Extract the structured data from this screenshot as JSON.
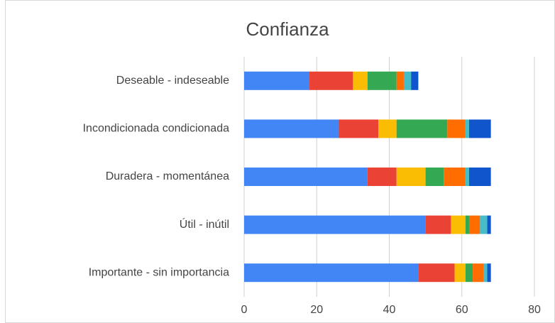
{
  "chart_data": {
    "type": "bar",
    "orientation": "horizontal",
    "stacked": true,
    "title": "Confianza",
    "categories": [
      "Deseable - indeseable",
      "Incondicionada condicionada",
      "Duradera - momentánea",
      "Útil - inútil",
      "Importante - sin importancia"
    ],
    "series": [
      {
        "color": "#4285f4",
        "values": [
          18,
          26,
          34,
          50,
          48
        ]
      },
      {
        "color": "#ea4335",
        "values": [
          12,
          11,
          8,
          7,
          10
        ]
      },
      {
        "color": "#fbbc04",
        "values": [
          4,
          5,
          8,
          4,
          3
        ]
      },
      {
        "color": "#34a853",
        "values": [
          8,
          14,
          5,
          1,
          2
        ]
      },
      {
        "color": "#ff6d01",
        "values": [
          2,
          5,
          6,
          3,
          3
        ]
      },
      {
        "color": "#46bdc6",
        "values": [
          2,
          1,
          1,
          2,
          1
        ]
      },
      {
        "color": "#1155cc",
        "values": [
          2,
          6,
          6,
          1,
          1
        ]
      }
    ],
    "xlim": [
      0,
      80
    ],
    "xticks": [
      0,
      20,
      40,
      60,
      80
    ],
    "grid": true
  }
}
